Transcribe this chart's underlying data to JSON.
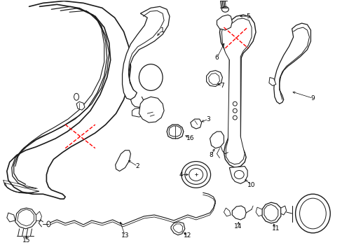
{
  "background_color": "#ffffff",
  "line_color": "#1a1a1a",
  "red_color": "#ff0000",
  "figsize": [
    4.89,
    3.6
  ],
  "dpi": 100
}
